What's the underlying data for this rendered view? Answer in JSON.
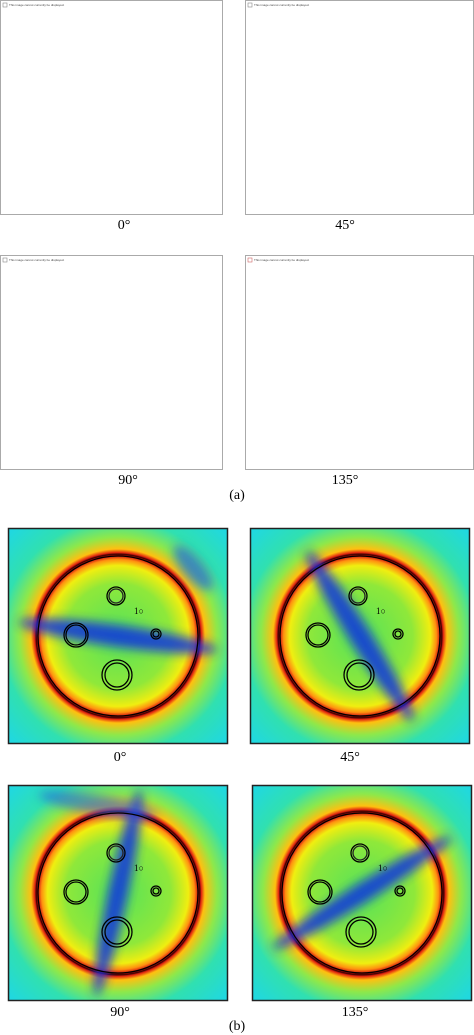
{
  "panels_a": [
    {
      "caption": "0°",
      "placeholder": "This image cannot currently be displayed."
    },
    {
      "caption": "45°",
      "placeholder": "This image cannot currently be displayed."
    },
    {
      "caption": "90°",
      "placeholder": "This image cannot currently be displayed."
    },
    {
      "caption": "135°",
      "placeholder": "This image cannot currently be displayed."
    }
  ],
  "label_a": "(a)",
  "panels_b": [
    {
      "caption": "0°"
    },
    {
      "caption": "45°"
    },
    {
      "caption": "90°"
    },
    {
      "caption": "135°"
    }
  ],
  "label_b": "(b)"
}
